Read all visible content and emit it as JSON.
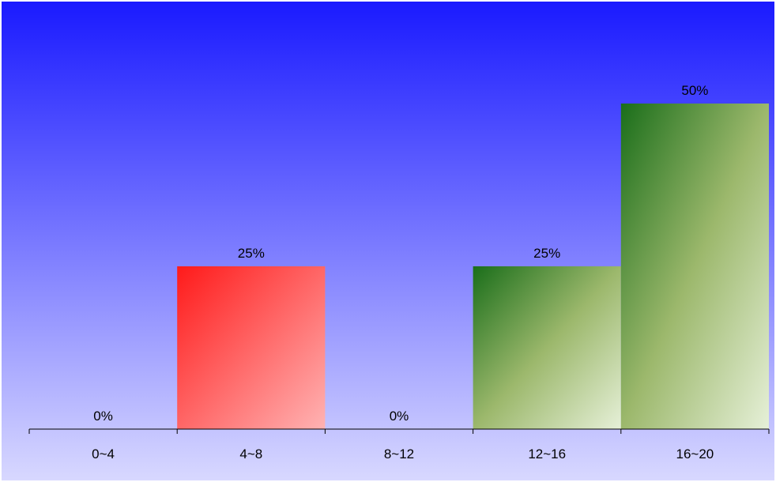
{
  "chart_data": {
    "type": "bar",
    "categories": [
      "0~4",
      "4~8",
      "8~12",
      "12~16",
      "16~20"
    ],
    "values": [
      0,
      25,
      0,
      25,
      50
    ],
    "value_labels": [
      "0%",
      "25%",
      "0%",
      "25%",
      "50%"
    ],
    "bar_colors": [
      "red",
      "red",
      "red",
      "green",
      "green"
    ],
    "unit": "%",
    "ylim": [
      0,
      50
    ],
    "grid": false,
    "legend": "none"
  },
  "colors": {
    "background_top": "#1a1aff",
    "background_bottom": "#d8d8ff",
    "red_start": "#ff1a1a",
    "red_end": "#ffb3b3",
    "green_start": "#1a6e1a",
    "green_mid": "#9cb86c",
    "green_end": "#e6f0d8",
    "axis": "#000000"
  }
}
